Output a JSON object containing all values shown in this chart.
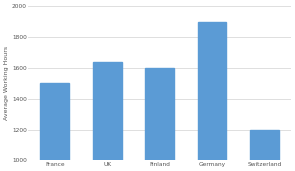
{
  "categories": [
    "France",
    "UK",
    "Finland",
    "Germany",
    "Switzerland"
  ],
  "values": [
    1500,
    1640,
    1600,
    1900,
    1200
  ],
  "bar_color": "#5B9BD5",
  "ylabel": "Average Working Hours",
  "ylim": [
    1000,
    2000
  ],
  "yticks": [
    1000,
    1200,
    1400,
    1600,
    1800,
    2000
  ],
  "background_color": "#FFFFFF",
  "grid_color": "#D9D9D9",
  "ylabel_fontsize": 4.5,
  "tick_fontsize": 4.2,
  "bar_width": 0.55
}
